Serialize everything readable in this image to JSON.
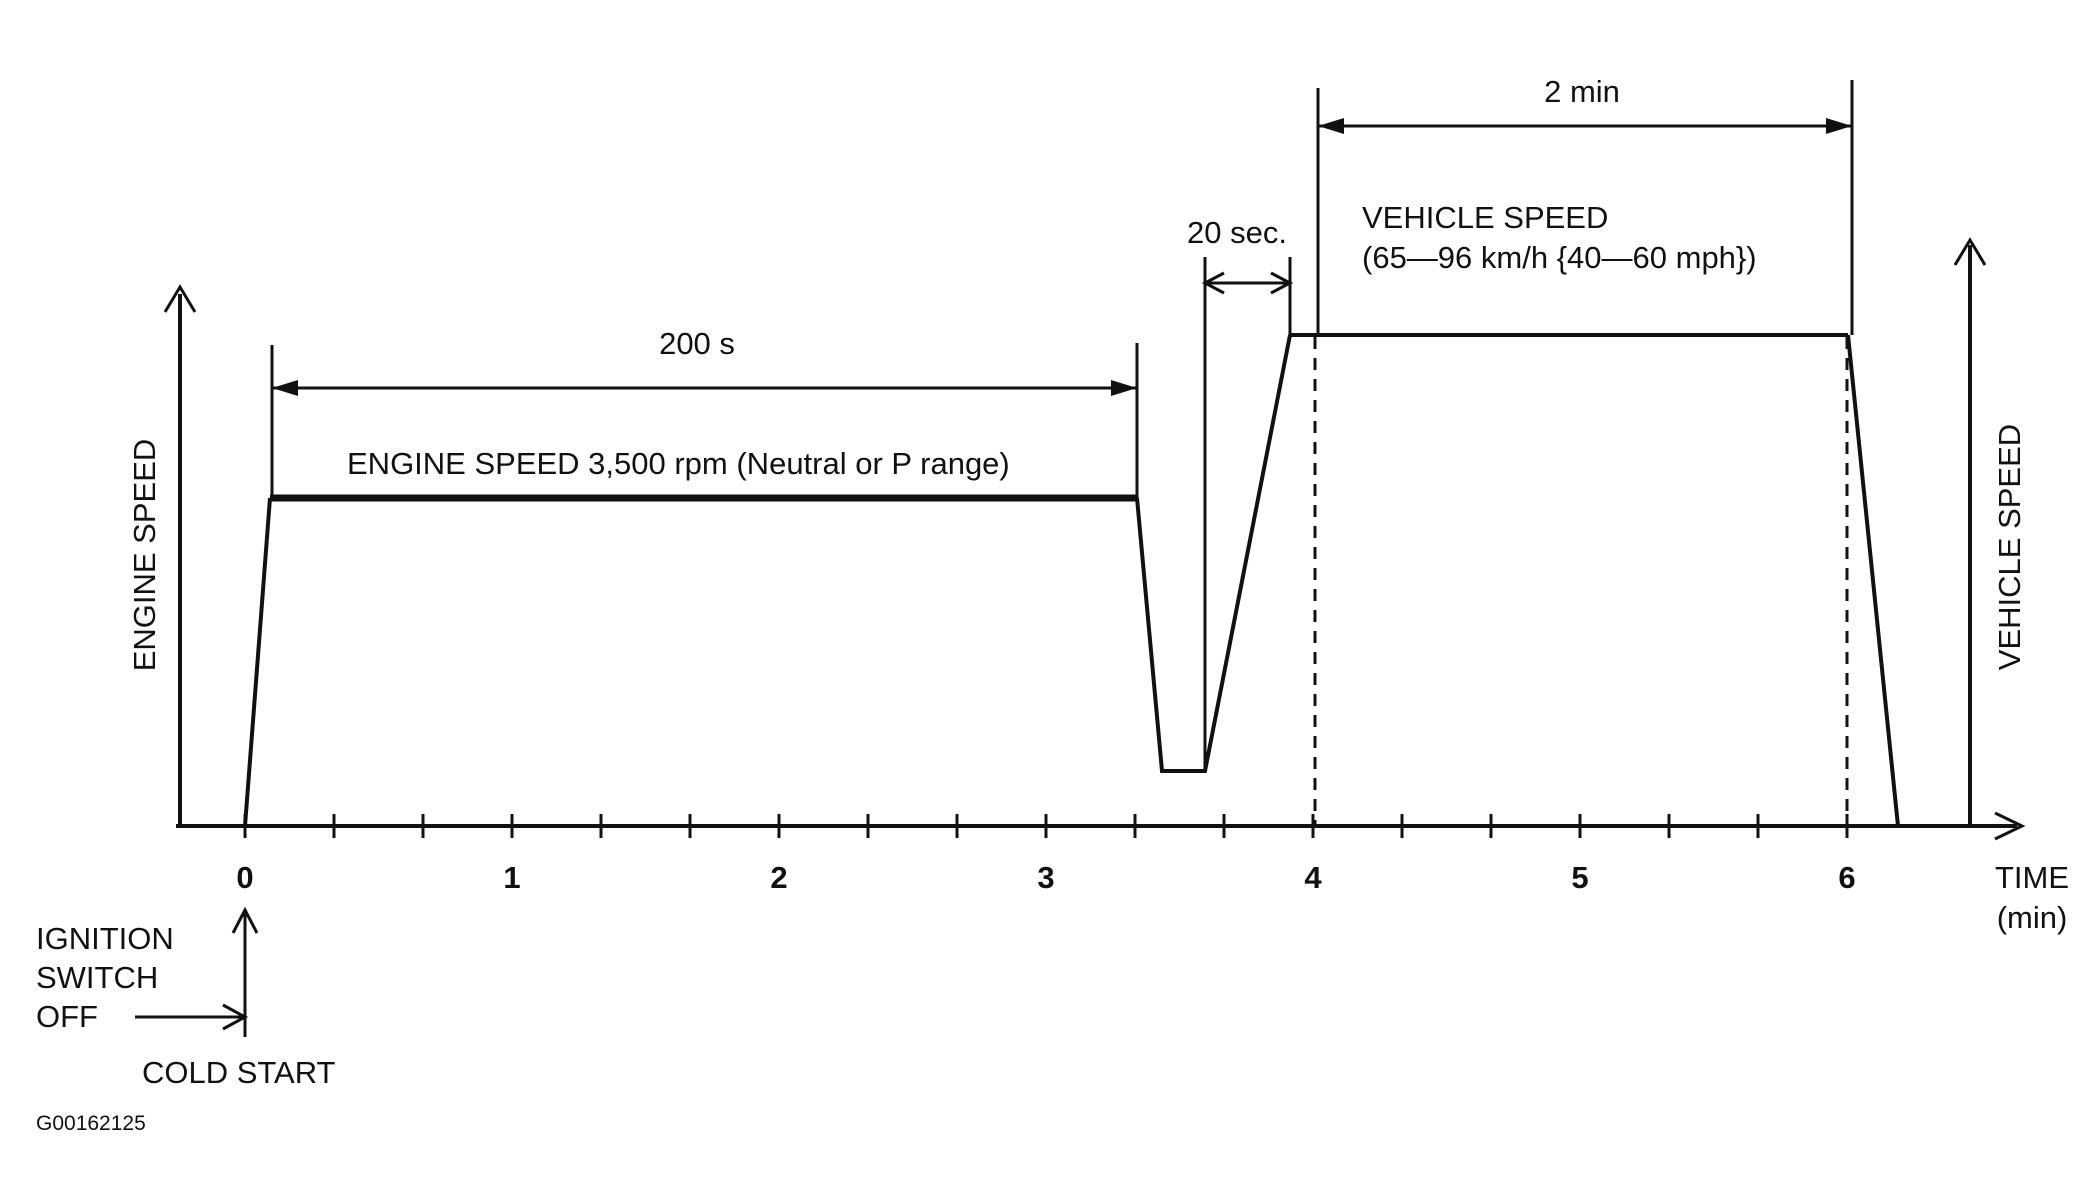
{
  "diagram": {
    "axes": {
      "y_left_label": "ENGINE SPEED",
      "y_right_label": "VEHICLE SPEED",
      "x_label_line1": "TIME",
      "x_label_line2": "(min)"
    },
    "x_ticks": [
      {
        "value": 0,
        "label": "0"
      },
      {
        "value": 1,
        "label": "1"
      },
      {
        "value": 2,
        "label": "2"
      },
      {
        "value": 3,
        "label": "3"
      },
      {
        "value": 4,
        "label": "4"
      },
      {
        "value": 5,
        "label": "5"
      },
      {
        "value": 6,
        "label": "6"
      }
    ],
    "annotations": {
      "duration_200s": "200 s",
      "engine_speed_text": "ENGINE SPEED 3,500 rpm (Neutral or P range)",
      "duration_20sec": "20 sec.",
      "duration_2min": "2 min",
      "vehicle_speed_line1": "VEHICLE SPEED",
      "vehicle_speed_line2": "(65—96 km/h {40—60 mph})"
    },
    "ignition": {
      "line1": "IGNITION",
      "line2": "SWITCH",
      "line3": "OFF",
      "cold_start": "COLD START"
    },
    "figure_code": "G00162125"
  }
}
